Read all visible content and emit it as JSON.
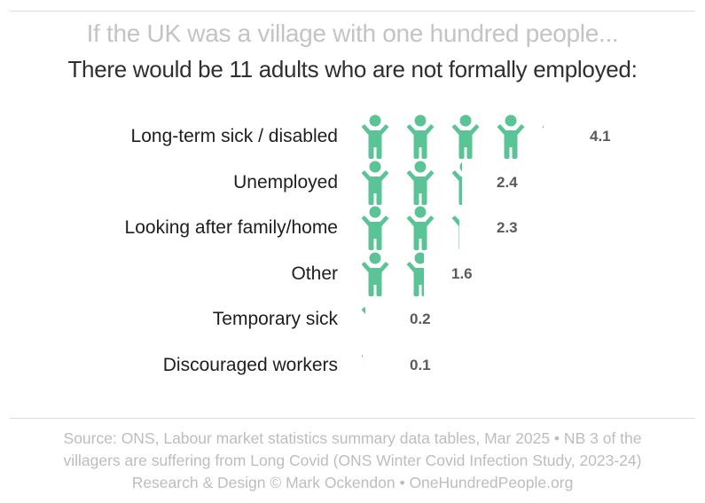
{
  "header": {
    "title": "If the UK was a village with one hundred people...",
    "subtitle": "There would be 11 adults who are not formally employed:"
  },
  "style": {
    "icon_color": "#5bc496",
    "value_color": "#5a5a5a",
    "title_color": "#c4c4c4",
    "footer_color": "#bdbdbd"
  },
  "chart_data": {
    "type": "bar",
    "subtype": "pictogram",
    "title": "If the UK was a village with one hundred people...",
    "subtitle": "There would be 11 adults who are not formally employed:",
    "unit": "people (of 100)",
    "icon": "person-arms-raised-icon",
    "categories": [
      "Long-term sick / disabled",
      "Unemployed",
      "Looking after family/home",
      "Other",
      "Temporary sick",
      "Discouraged workers"
    ],
    "values": [
      4.1,
      2.4,
      2.3,
      1.6,
      0.2,
      0.1
    ],
    "value_labels": [
      "4.1",
      "2.4",
      "2.3",
      "1.6",
      "0.2",
      "0.1"
    ],
    "total": 11,
    "grid": false,
    "legend": null
  },
  "rows": [
    {
      "label": "Long-term sick / disabled",
      "value": "4.1"
    },
    {
      "label": "Unemployed",
      "value": "2.4"
    },
    {
      "label": "Looking after family/home",
      "value": "2.3"
    },
    {
      "label": "Other",
      "value": "1.6"
    },
    {
      "label": "Temporary sick",
      "value": "0.2"
    },
    {
      "label": "Discouraged workers",
      "value": "0.1"
    }
  ],
  "footer": {
    "line1": "Source: ONS, Labour market statistics summary data tables, Mar 2025 • NB 3 of the",
    "line2": "villagers are suffering from Long Covid (ONS Winter Covid Infection Study, 2023-24)",
    "line3": "Research & Design © Mark Ockendon • OneHundredPeople.org"
  }
}
